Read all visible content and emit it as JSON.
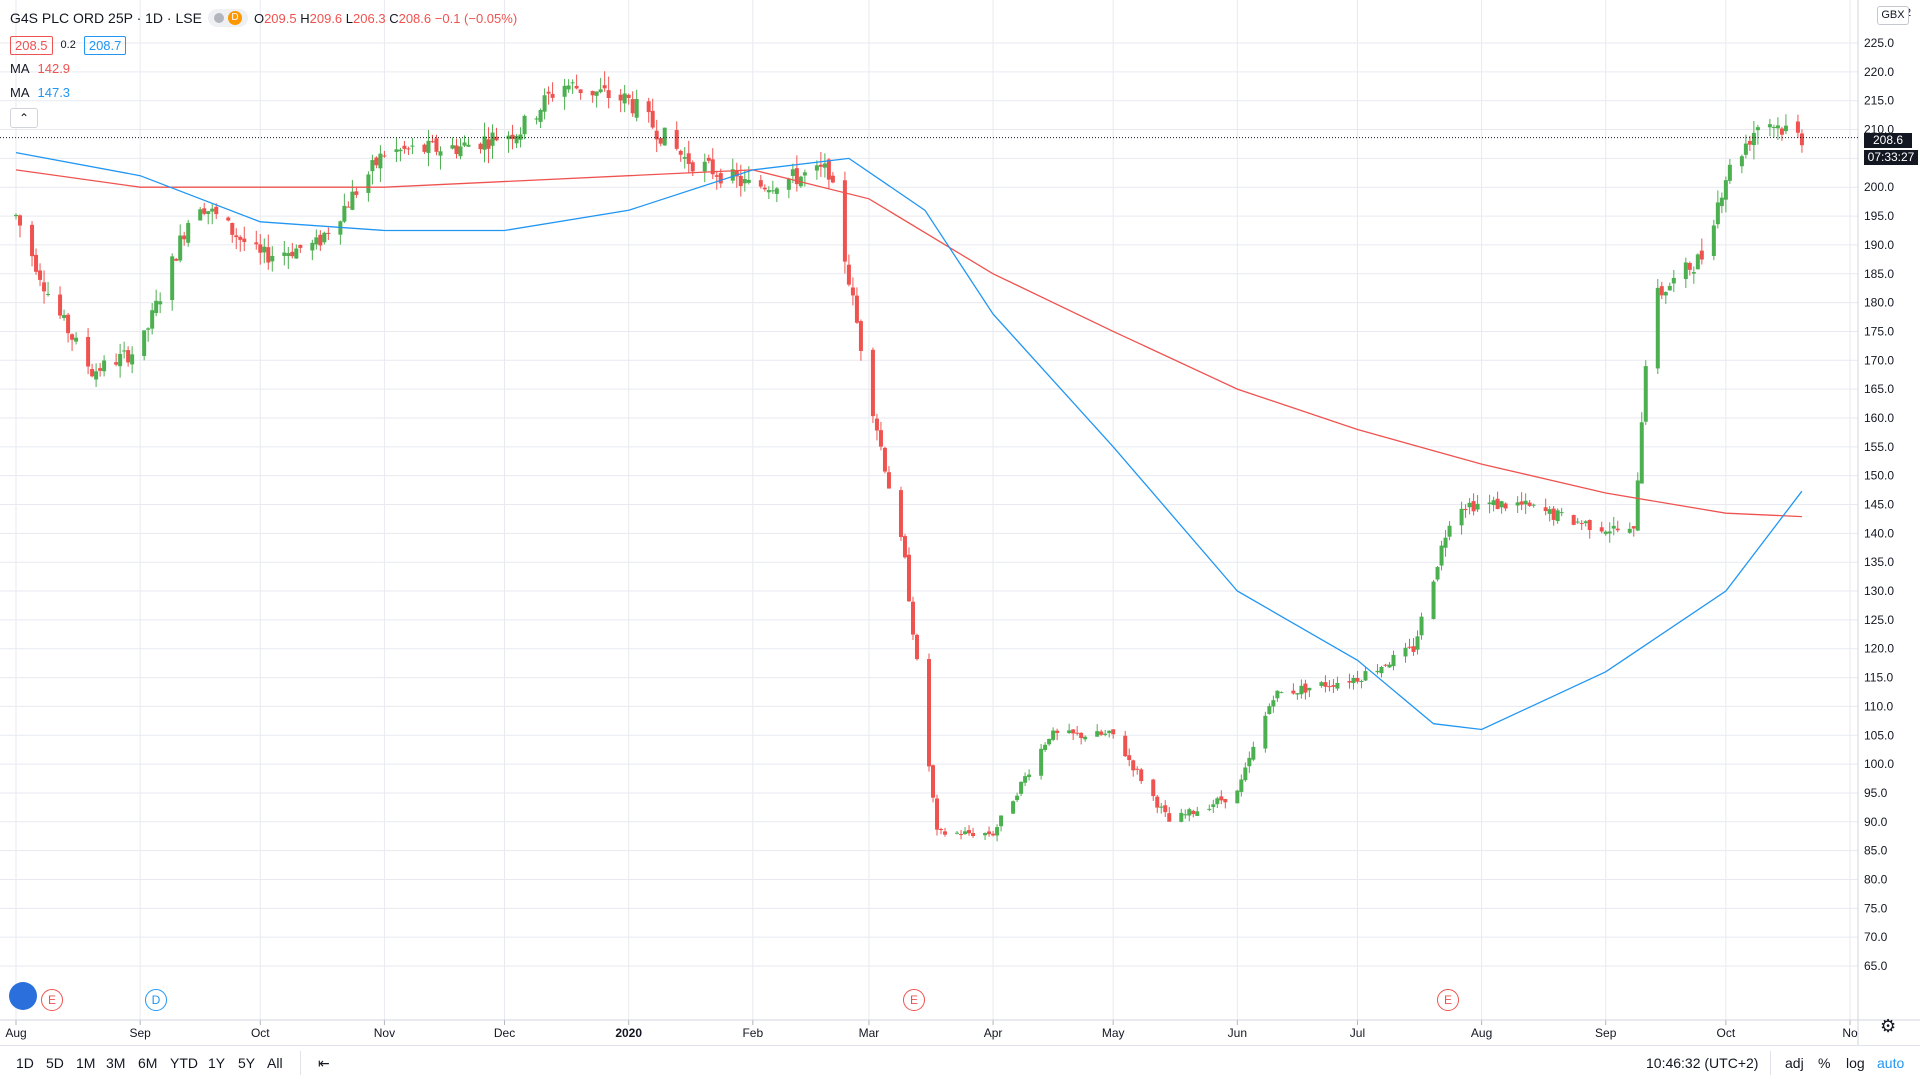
{
  "header": {
    "symbol": "G4S PLC ORD 25P · 1D · LSE",
    "status_badge": "D",
    "ohlc": {
      "o_label": "O",
      "o": "209.5",
      "h_label": "H",
      "h": "209.6",
      "l_label": "L",
      "l": "206.3",
      "c_label": "C",
      "c": "208.6",
      "change": "−0.1 (−0.05%)"
    },
    "bid": "208.5",
    "spread": "0.2",
    "ask": "208.7",
    "ma1_label": "MA",
    "ma1_value": "142.9",
    "ma2_label": "MA",
    "ma2_value": "147.3"
  },
  "colors": {
    "up": "#26a69a",
    "up_fill": "#4caf50",
    "down": "#ef5350",
    "ma_red": "#ef5350",
    "ma_blue": "#2196f3",
    "grid": "#e8eaf0"
  },
  "price_axis": {
    "currency": "GBX",
    "current_price": "208.6",
    "countdown": "07:33:27",
    "top_tick": "2",
    "ticks": [
      "225.0",
      "220.0",
      "215.0",
      "210.0",
      "205.0",
      "200.0",
      "195.0",
      "190.0",
      "185.0",
      "180.0",
      "175.0",
      "170.0",
      "165.0",
      "160.0",
      "155.0",
      "150.0",
      "145.0",
      "140.0",
      "135.0",
      "130.0",
      "125.0",
      "120.0",
      "115.0",
      "110.0",
      "105.0",
      "100.0",
      "95.0",
      "90.0",
      "85.0",
      "80.0",
      "75.0",
      "70.0",
      "65.0"
    ]
  },
  "time_axis": {
    "labels": [
      "Aug",
      "Sep",
      "Oct",
      "Nov",
      "Dec",
      "2020",
      "Feb",
      "Mar",
      "Apr",
      "May",
      "Jun",
      "Jul",
      "Aug",
      "Sep",
      "Oct",
      "No"
    ]
  },
  "events": [
    {
      "type": "E",
      "label": "E"
    },
    {
      "type": "D",
      "label": "D"
    },
    {
      "type": "E",
      "label": "E"
    },
    {
      "type": "E",
      "label": "E"
    }
  ],
  "bottom_bar": {
    "ranges": [
      "1D",
      "5D",
      "1M",
      "3M",
      "6M",
      "YTD",
      "1Y",
      "5Y",
      "All"
    ],
    "clock": "10:46:32 (UTC+2)",
    "adj": "adj",
    "percent": "%",
    "log": "log",
    "auto": "auto"
  },
  "chart_data": {
    "type": "candlestick",
    "title": "G4S PLC ORD 25P · 1D · LSE",
    "ylim": [
      64,
      228
    ],
    "log_scale": false,
    "grid": true,
    "x_range": [
      "2019-08-01",
      "2020-10-31"
    ],
    "candles_monthly_anchors": [
      {
        "date": "2019-08-01",
        "close": 195
      },
      {
        "date": "2019-08-10",
        "close": 180
      },
      {
        "date": "2019-08-20",
        "close": 168
      },
      {
        "date": "2019-09-01",
        "close": 172
      },
      {
        "date": "2019-09-15",
        "close": 198
      },
      {
        "date": "2019-10-01",
        "close": 188
      },
      {
        "date": "2019-10-15",
        "close": 190
      },
      {
        "date": "2019-11-01",
        "close": 206
      },
      {
        "date": "2019-11-20",
        "close": 207
      },
      {
        "date": "2019-12-05",
        "close": 210
      },
      {
        "date": "2019-12-15",
        "close": 218
      },
      {
        "date": "2020-01-01",
        "close": 215
      },
      {
        "date": "2020-01-15",
        "close": 205
      },
      {
        "date": "2020-02-01",
        "close": 200
      },
      {
        "date": "2020-02-20",
        "close": 203
      },
      {
        "date": "2020-03-01",
        "close": 165
      },
      {
        "date": "2020-03-10",
        "close": 135
      },
      {
        "date": "2020-03-18",
        "close": 88
      },
      {
        "date": "2020-04-01",
        "close": 88
      },
      {
        "date": "2020-04-15",
        "close": 105
      },
      {
        "date": "2020-05-01",
        "close": 105
      },
      {
        "date": "2020-05-15",
        "close": 90
      },
      {
        "date": "2020-06-01",
        "close": 95
      },
      {
        "date": "2020-06-10",
        "close": 112
      },
      {
        "date": "2020-07-01",
        "close": 115
      },
      {
        "date": "2020-07-15",
        "close": 120
      },
      {
        "date": "2020-07-25",
        "close": 145
      },
      {
        "date": "2020-08-10",
        "close": 145
      },
      {
        "date": "2020-08-25",
        "close": 142
      },
      {
        "date": "2020-09-08",
        "close": 140
      },
      {
        "date": "2020-09-12",
        "close": 180
      },
      {
        "date": "2020-09-25",
        "close": 188
      },
      {
        "date": "2020-10-01",
        "close": 202
      },
      {
        "date": "2020-10-10",
        "close": 212
      },
      {
        "date": "2020-10-20",
        "close": 208.6
      }
    ],
    "series": [
      {
        "name": "MA",
        "color": "#ef5350",
        "points": [
          {
            "date": "2019-08-01",
            "value": 203
          },
          {
            "date": "2019-09-01",
            "value": 200
          },
          {
            "date": "2019-11-01",
            "value": 200
          },
          {
            "date": "2020-01-01",
            "value": 202
          },
          {
            "date": "2020-02-01",
            "value": 203
          },
          {
            "date": "2020-03-01",
            "value": 198
          },
          {
            "date": "2020-04-01",
            "value": 185
          },
          {
            "date": "2020-05-01",
            "value": 175
          },
          {
            "date": "2020-06-01",
            "value": 165
          },
          {
            "date": "2020-07-01",
            "value": 158
          },
          {
            "date": "2020-08-01",
            "value": 152
          },
          {
            "date": "2020-09-01",
            "value": 147
          },
          {
            "date": "2020-10-01",
            "value": 143.5
          },
          {
            "date": "2020-10-20",
            "value": 142.9
          }
        ]
      },
      {
        "name": "MA",
        "color": "#2196f3",
        "points": [
          {
            "date": "2019-08-01",
            "value": 206
          },
          {
            "date": "2019-09-01",
            "value": 202
          },
          {
            "date": "2019-10-01",
            "value": 194
          },
          {
            "date": "2019-11-01",
            "value": 192.5
          },
          {
            "date": "2019-12-01",
            "value": 192.5
          },
          {
            "date": "2020-01-01",
            "value": 196
          },
          {
            "date": "2020-02-01",
            "value": 203
          },
          {
            "date": "2020-02-25",
            "value": 205
          },
          {
            "date": "2020-03-15",
            "value": 196
          },
          {
            "date": "2020-04-01",
            "value": 178
          },
          {
            "date": "2020-05-01",
            "value": 155
          },
          {
            "date": "2020-06-01",
            "value": 130
          },
          {
            "date": "2020-07-01",
            "value": 118
          },
          {
            "date": "2020-07-20",
            "value": 107
          },
          {
            "date": "2020-08-01",
            "value": 106
          },
          {
            "date": "2020-09-01",
            "value": 116
          },
          {
            "date": "2020-10-01",
            "value": 130
          },
          {
            "date": "2020-10-20",
            "value": 147.3
          }
        ]
      }
    ]
  }
}
